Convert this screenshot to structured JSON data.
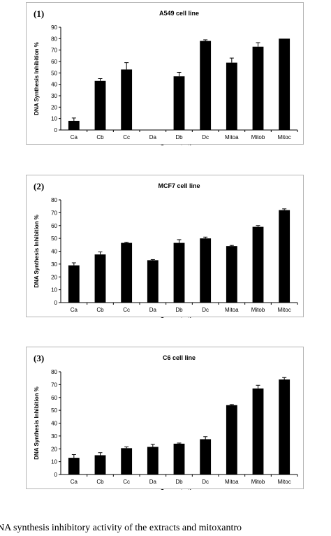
{
  "figure": {
    "caption": "DNA synthesis inhibitory activity of the extracts and mitoxantro"
  },
  "chart_data": [
    {
      "type": "bar",
      "panel_label": "(1)",
      "title": "A549 cell line",
      "xlabel": "Concentration",
      "ylabel": "DNA Synthesis Inhibition %",
      "ylim": [
        0,
        90
      ],
      "yticks": [
        0,
        10,
        20,
        30,
        40,
        50,
        60,
        70,
        80,
        90
      ],
      "categories": [
        "Ca",
        "Cb",
        "Cc",
        "Da",
        "Db",
        "Dc",
        "Mitoa",
        "Mitob",
        "Mitoc"
      ],
      "values": [
        8,
        43,
        53,
        0,
        47,
        78,
        59,
        73,
        80
      ],
      "errors": [
        2.5,
        2,
        6,
        0,
        3.5,
        1,
        4,
        3.5,
        0
      ],
      "bar_color": "#000000",
      "grid": false,
      "legend": "none"
    },
    {
      "type": "bar",
      "panel_label": "(2)",
      "title": "MCF7 cell line",
      "xlabel": "Concentration",
      "ylabel": "DNA Synthesis Inhibition %",
      "ylim": [
        0,
        80
      ],
      "yticks": [
        0,
        10,
        20,
        30,
        40,
        50,
        60,
        70,
        80
      ],
      "categories": [
        "Ca",
        "Cb",
        "Cc",
        "Da",
        "Db",
        "Dc",
        "Mitoa",
        "Mitob",
        "Mitoc"
      ],
      "values": [
        29,
        37.5,
        46.5,
        33,
        46.5,
        50,
        44,
        59,
        72
      ],
      "errors": [
        2,
        2,
        0.5,
        0.5,
        2.5,
        1,
        0.5,
        1,
        1
      ],
      "bar_color": "#000000",
      "grid": false,
      "legend": "none"
    },
    {
      "type": "bar",
      "panel_label": "(3)",
      "title": "C6 cell line",
      "xlabel": "Concentration",
      "ylabel": "DNA Synthesis Inhibition %",
      "ylim": [
        0,
        80
      ],
      "yticks": [
        0,
        10,
        20,
        30,
        40,
        50,
        60,
        70,
        80
      ],
      "categories": [
        "Ca",
        "Cb",
        "Cc",
        "Da",
        "Db",
        "Dc",
        "Mitoa",
        "Mitob",
        "Mitoc"
      ],
      "values": [
        13,
        15,
        20.5,
        21.5,
        24,
        27.5,
        54,
        67,
        74
      ],
      "errors": [
        2.5,
        2,
        1,
        2,
        0.5,
        2,
        0.5,
        2.5,
        1.5
      ],
      "bar_color": "#000000",
      "grid": false,
      "legend": "none"
    }
  ]
}
